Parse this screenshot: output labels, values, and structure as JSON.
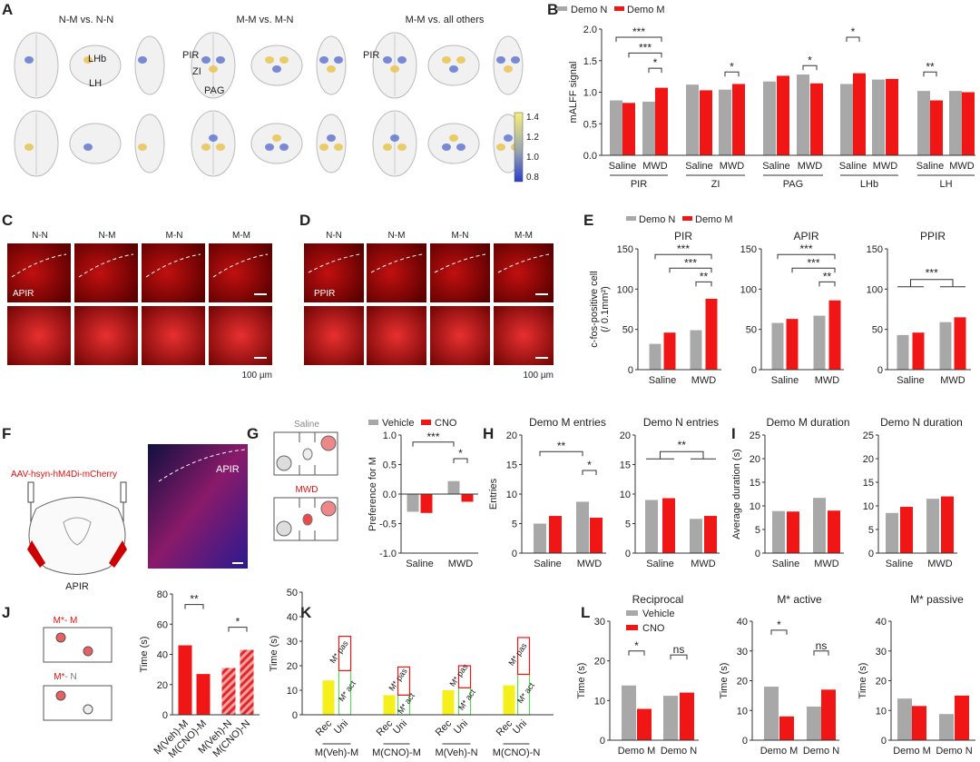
{
  "panel_letters": {
    "A": "A",
    "B": "B",
    "C": "C",
    "D": "D",
    "E": "E",
    "F": "F",
    "G": "G",
    "H": "H",
    "I": "I",
    "J": "J",
    "K": "K",
    "L": "L"
  },
  "colors": {
    "gray": "#a8a8a8",
    "red": "#f01616",
    "yellow": "#f5ef1c",
    "green": "#5cd65c"
  },
  "panelA": {
    "titles": [
      "N-M vs. N-N",
      "M-M vs. M-N",
      "M-M vs. all others"
    ],
    "region_labels": [
      "LHb",
      "LH",
      "PIR",
      "ZI",
      "PAG",
      "PIR"
    ],
    "colorbar_ticks": [
      "1.4",
      "1.2",
      "1.0",
      "0.8"
    ]
  },
  "panelC": {
    "columns": [
      "N-N",
      "N-M",
      "M-N",
      "M-M"
    ],
    "region": "APIR",
    "scale": "100 µm"
  },
  "panelD": {
    "columns": [
      "N-N",
      "N-M",
      "M-N",
      "M-M"
    ],
    "region": "PPIR",
    "scale": "100 µm"
  },
  "panelF": {
    "virus": "AAV-hsyn-hM4Di-mCherry",
    "slice_label": "APIR",
    "image_label": "APIR"
  },
  "panelG": {
    "saline": "Saline",
    "mwd": "MWD"
  },
  "panelJ": {
    "pair1_a": "M*",
    "pair1_b": "- M",
    "pair2_a": "M*",
    "pair2_b": "- N"
  },
  "legends": {
    "demo": [
      "Demo N",
      "Demo M"
    ],
    "drug": [
      "Vehicle",
      "CNO"
    ]
  },
  "charts": {
    "B": {
      "ylabel": "mALFF signal",
      "ylim": [
        0,
        2
      ],
      "yticks": [
        "0.0",
        "0.5",
        "1.0",
        "1.5",
        "2.0"
      ],
      "ytick_values": [
        0,
        0.5,
        1,
        1.5,
        2
      ],
      "bars": [
        {
          "v": 0.87,
          "s": "gray"
        },
        {
          "v": 0.83,
          "s": "red"
        },
        {
          "v": 0.85,
          "s": "gray"
        },
        {
          "v": 1.07,
          "s": "red"
        },
        {
          "v": 1.12,
          "s": "gray"
        },
        {
          "v": 1.03,
          "s": "red"
        },
        {
          "v": 1.04,
          "s": "gray"
        },
        {
          "v": 1.13,
          "s": "red"
        },
        {
          "v": 1.17,
          "s": "gray"
        },
        {
          "v": 1.26,
          "s": "red"
        },
        {
          "v": 1.28,
          "s": "gray"
        },
        {
          "v": 1.14,
          "s": "red"
        },
        {
          "v": 1.13,
          "s": "gray"
        },
        {
          "v": 1.3,
          "s": "red"
        },
        {
          "v": 1.2,
          "s": "gray"
        },
        {
          "v": 1.21,
          "s": "red"
        },
        {
          "v": 1.02,
          "s": "gray"
        },
        {
          "v": 0.87,
          "s": "red"
        },
        {
          "v": 1.02,
          "s": "gray"
        },
        {
          "v": 1.0,
          "s": "red"
        }
      ],
      "xlabels": [
        {
          "t": "Saline",
          "a": 0,
          "b": 1
        },
        {
          "t": "MWD",
          "a": 2,
          "b": 3
        },
        {
          "t": "Saline",
          "a": 4,
          "b": 5
        },
        {
          "t": "MWD",
          "a": 6,
          "b": 7
        },
        {
          "t": "Saline",
          "a": 8,
          "b": 9
        },
        {
          "t": "MWD",
          "a": 10,
          "b": 11
        },
        {
          "t": "Saline",
          "a": 12,
          "b": 13
        },
        {
          "t": "MWD",
          "a": 14,
          "b": 15
        },
        {
          "t": "Saline",
          "a": 16,
          "b": 17
        },
        {
          "t": "MWD",
          "a": 18,
          "b": 19
        },
        {
          "t": "PIR",
          "a": 0,
          "b": 3,
          "row": 1
        },
        {
          "t": "ZI",
          "a": 4,
          "b": 7,
          "row": 1
        },
        {
          "t": "PAG",
          "a": 8,
          "b": 11,
          "row": 1
        },
        {
          "t": "LHb",
          "a": 12,
          "b": 15,
          "row": 1
        },
        {
          "t": "LH",
          "a": 16,
          "b": 19,
          "row": 1
        }
      ],
      "sig": [
        {
          "a": 0,
          "b": 3,
          "y": 1.87,
          "t": "***"
        },
        {
          "a": 1,
          "b": 3,
          "y": 1.62,
          "t": "***"
        },
        {
          "a": 2,
          "b": 3,
          "y": 1.38,
          "t": "*"
        },
        {
          "a": 6,
          "b": 7,
          "y": 1.32,
          "t": "*"
        },
        {
          "a": 10,
          "b": 11,
          "y": 1.42,
          "t": "*"
        },
        {
          "a": 12,
          "b": 13,
          "y": 1.87,
          "t": "*"
        },
        {
          "a": 16,
          "b": 17,
          "y": 1.32,
          "t": "**"
        }
      ]
    },
    "E1": {
      "title": "PIR",
      "ylabel": "c-fos-positive cell",
      "ylabel2": "(/ 0.1mm²)",
      "ylim": [
        0,
        150
      ],
      "yticks": [
        "0",
        "50",
        "100",
        "150"
      ],
      "ytick_values": [
        0,
        50,
        100,
        150
      ],
      "bars": [
        {
          "v": 32,
          "s": "gray"
        },
        {
          "v": 46,
          "s": "red"
        },
        {
          "v": 49,
          "s": "gray"
        },
        {
          "v": 88,
          "s": "red"
        }
      ],
      "xlabels": [
        {
          "t": "Saline",
          "a": 0,
          "b": 1
        },
        {
          "t": "MWD",
          "a": 2,
          "b": 3
        }
      ],
      "sig": [
        {
          "a": 0,
          "b": 3,
          "y": 143,
          "t": "***"
        },
        {
          "a": 1,
          "b": 3,
          "y": 126,
          "t": "***"
        },
        {
          "a": 2,
          "b": 3,
          "y": 109,
          "t": "**"
        }
      ]
    },
    "E2": {
      "title": "APIR",
      "ylim": [
        0,
        150
      ],
      "yticks": [
        "0",
        "50",
        "100",
        "150"
      ],
      "ytick_values": [
        0,
        50,
        100,
        150
      ],
      "bars": [
        {
          "v": 58,
          "s": "gray"
        },
        {
          "v": 63,
          "s": "red"
        },
        {
          "v": 67,
          "s": "gray"
        },
        {
          "v": 86,
          "s": "red"
        }
      ],
      "xlabels": [
        {
          "t": "Saline",
          "a": 0,
          "b": 1
        },
        {
          "t": "MWD",
          "a": 2,
          "b": 3
        }
      ],
      "sig": [
        {
          "a": 0,
          "b": 3,
          "y": 143,
          "t": "***"
        },
        {
          "a": 1,
          "b": 3,
          "y": 126,
          "t": "***"
        },
        {
          "a": 2,
          "b": 3,
          "y": 109,
          "t": "**"
        }
      ]
    },
    "E3": {
      "title": "PPIR",
      "ylim": [
        0,
        150
      ],
      "yticks": [
        "0",
        "50",
        "100",
        "150"
      ],
      "ytick_values": [
        0,
        50,
        100,
        150
      ],
      "bars": [
        {
          "v": 43,
          "s": "gray"
        },
        {
          "v": 46,
          "s": "red"
        },
        {
          "v": 59,
          "s": "gray"
        },
        {
          "v": 65,
          "s": "red"
        }
      ],
      "xlabels": [
        {
          "t": "Saline",
          "a": 0,
          "b": 1
        },
        {
          "t": "MWD",
          "a": 2,
          "b": 3
        }
      ],
      "sig": [
        {
          "a": 0,
          "b": 3,
          "y": 112,
          "t": "***",
          "grouped": true
        }
      ]
    },
    "G": {
      "ylabel": "Preference for M",
      "ylim": [
        -1,
        1
      ],
      "yticks": [
        "-1.0",
        "-0.5",
        "0.0",
        "0.5",
        "1.0"
      ],
      "ytick_values": [
        -1,
        -0.5,
        0,
        0.5,
        1
      ],
      "bars": [
        {
          "v": -0.3,
          "s": "gray"
        },
        {
          "v": -0.32,
          "s": "red"
        },
        {
          "v": 0.22,
          "s": "gray"
        },
        {
          "v": -0.13,
          "s": "red"
        }
      ],
      "xlabels": [
        {
          "t": "Saline",
          "a": 0,
          "b": 1
        },
        {
          "t": "MWD",
          "a": 2,
          "b": 3
        }
      ],
      "sig": [
        {
          "a": 0,
          "b": 2,
          "y": 0.88,
          "t": "***"
        },
        {
          "a": 2,
          "b": 3,
          "y": 0.6,
          "t": "*"
        }
      ]
    },
    "H1": {
      "title": "Demo M entries",
      "ylabel": "Entries",
      "ylim": [
        0,
        20
      ],
      "yticks": [
        "0",
        "5",
        "10",
        "15",
        "20"
      ],
      "ytick_values": [
        0,
        5,
        10,
        15,
        20
      ],
      "bars": [
        {
          "v": 5.0,
          "s": "gray"
        },
        {
          "v": 6.3,
          "s": "red"
        },
        {
          "v": 8.7,
          "s": "gray"
        },
        {
          "v": 6.0,
          "s": "red"
        }
      ],
      "xlabels": [
        {
          "t": "Saline",
          "a": 0,
          "b": 1
        },
        {
          "t": "MWD",
          "a": 2,
          "b": 3
        }
      ],
      "sig": [
        {
          "a": 0,
          "b": 2,
          "y": 17.2,
          "t": "**"
        },
        {
          "a": 2,
          "b": 3,
          "y": 14,
          "t": "*"
        }
      ]
    },
    "H2": {
      "title": "Demo N entries",
      "ylim": [
        0,
        20
      ],
      "yticks": [
        "0",
        "5",
        "10",
        "15",
        "20"
      ],
      "ytick_values": [
        0,
        5,
        10,
        15,
        20
      ],
      "bars": [
        {
          "v": 9.0,
          "s": "gray"
        },
        {
          "v": 9.3,
          "s": "red"
        },
        {
          "v": 5.8,
          "s": "gray"
        },
        {
          "v": 6.3,
          "s": "red"
        }
      ],
      "xlabels": [
        {
          "t": "Saline",
          "a": 0,
          "b": 1
        },
        {
          "t": "MWD",
          "a": 2,
          "b": 3
        }
      ],
      "sig": [
        {
          "a": 0,
          "b": 3,
          "y": 17.2,
          "t": "**",
          "grouped": true
        }
      ]
    },
    "I1": {
      "title": "Demo M duration",
      "ylabel": "Average duration (s)",
      "ylim": [
        0,
        25
      ],
      "yticks": [
        "0",
        "5",
        "10",
        "15",
        "20",
        "25"
      ],
      "ytick_values": [
        0,
        5,
        10,
        15,
        20,
        25
      ],
      "bars": [
        {
          "v": 8.9,
          "s": "gray"
        },
        {
          "v": 8.8,
          "s": "red"
        },
        {
          "v": 11.7,
          "s": "gray"
        },
        {
          "v": 9.0,
          "s": "red"
        }
      ],
      "xlabels": [
        {
          "t": "Saline",
          "a": 0,
          "b": 1
        },
        {
          "t": "MWD",
          "a": 2,
          "b": 3
        }
      ],
      "sig": []
    },
    "I2": {
      "title": "Demo N duration",
      "ylim": [
        0,
        25
      ],
      "yticks": [
        "0",
        "5",
        "10",
        "15",
        "20",
        "25"
      ],
      "ytick_values": [
        0,
        5,
        10,
        15,
        20,
        25
      ],
      "bars": [
        {
          "v": 8.5,
          "s": "gray"
        },
        {
          "v": 9.8,
          "s": "red"
        },
        {
          "v": 11.5,
          "s": "gray"
        },
        {
          "v": 12.0,
          "s": "red"
        }
      ],
      "xlabels": [
        {
          "t": "Saline",
          "a": 0,
          "b": 1
        },
        {
          "t": "MWD",
          "a": 2,
          "b": 3
        }
      ],
      "sig": []
    },
    "J": {
      "ylabel": "Time (s)",
      "ylim": [
        0,
        80
      ],
      "yticks": [
        "0",
        "20",
        "40",
        "60",
        "80"
      ],
      "ytick_values": [
        0,
        20,
        40,
        60,
        80
      ],
      "bars": [
        {
          "v": 46,
          "s": "red"
        },
        {
          "v": 27,
          "s": "red"
        },
        {
          "v": 31,
          "s": "hatch"
        },
        {
          "v": 43,
          "s": "hatch"
        }
      ],
      "xlabels": [
        {
          "t": "M(Veh)-M",
          "a": 0,
          "b": 0,
          "rot": true
        },
        {
          "t": "M(CNO)-M",
          "a": 1,
          "b": 1,
          "rot": true
        },
        {
          "t": "M(Veh)-N",
          "a": 2,
          "b": 2,
          "rot": true
        },
        {
          "t": "M(CNO)-N",
          "a": 3,
          "b": 3,
          "rot": true
        }
      ],
      "sig": [
        {
          "a": 0,
          "b": 1,
          "y": 73,
          "t": "**"
        },
        {
          "a": 2,
          "b": 3,
          "y": 58,
          "t": "*"
        }
      ]
    },
    "K": {
      "ylabel": "Time (s)",
      "ylim": [
        0,
        50
      ],
      "yticks": [
        "0",
        "10",
        "20",
        "30",
        "40",
        "50"
      ],
      "ytick_values": [
        0,
        10,
        20,
        30,
        40,
        50
      ],
      "bars": [
        {
          "v": 14,
          "s": "yellow"
        },
        {
          "v": 18,
          "s": "green",
          "lab": "M* act"
        },
        {
          "v": 32,
          "base": 18,
          "s": "redo",
          "lab": "M* pas"
        },
        {
          "v": 8,
          "s": "yellow"
        },
        {
          "v": 8,
          "s": "green",
          "lab": "M* act"
        },
        {
          "v": 19.5,
          "base": 8,
          "s": "redo",
          "lab": "M* pas"
        },
        {
          "v": 10,
          "s": "yellow"
        },
        {
          "v": 11,
          "s": "green",
          "lab": "M* act"
        },
        {
          "v": 20,
          "base": 11,
          "s": "redo",
          "lab": "M* pas"
        },
        {
          "v": 12,
          "s": "yellow"
        },
        {
          "v": 16.5,
          "s": "green",
          "lab": "M* act"
        },
        {
          "v": 31.5,
          "base": 16.5,
          "s": "redo",
          "lab": "M* pas"
        }
      ],
      "xlabels": [
        {
          "t": "Rec",
          "a": 0,
          "b": 0,
          "rot": true
        },
        {
          "t": "Uni",
          "a": 1,
          "b": 1,
          "rot": true
        },
        {
          "t": "Rec",
          "a": 3,
          "b": 3,
          "rot": true
        },
        {
          "t": "Uni",
          "a": 4,
          "b": 4,
          "rot": true
        },
        {
          "t": "Rec",
          "a": 6,
          "b": 6,
          "rot": true
        },
        {
          "t": "Uni",
          "a": 7,
          "b": 7,
          "rot": true
        },
        {
          "t": "Rec",
          "a": 9,
          "b": 9,
          "rot": true
        },
        {
          "t": "Uni",
          "a": 10,
          "b": 10,
          "rot": true
        },
        {
          "t": "M(Veh)-M",
          "a": 0,
          "b": 1,
          "row": 2
        },
        {
          "t": "M(CNO)-M",
          "a": 3,
          "b": 4,
          "row": 2
        },
        {
          "t": "M(Veh)-N",
          "a": 6,
          "b": 7,
          "row": 2
        },
        {
          "t": "M(CNO)-N",
          "a": 9,
          "b": 10,
          "row": 2
        }
      ],
      "sig": []
    },
    "L1": {
      "title": "Reciprocal",
      "ylabel": "Time (s)",
      "ylim": [
        0,
        30
      ],
      "yticks": [
        "0",
        "10",
        "20",
        "30"
      ],
      "ytick_values": [
        0,
        10,
        20,
        30
      ],
      "bars": [
        {
          "v": 13.8,
          "s": "gray"
        },
        {
          "v": 7.9,
          "s": "red"
        },
        {
          "v": 11.2,
          "s": "gray"
        },
        {
          "v": 12.0,
          "s": "red"
        }
      ],
      "xlabels": [
        {
          "t": "Demo M",
          "a": 0,
          "b": 1
        },
        {
          "t": "Demo N",
          "a": 2,
          "b": 3
        }
      ],
      "sig": [
        {
          "a": 0,
          "b": 1,
          "y": 22.5,
          "t": "*"
        },
        {
          "a": 2,
          "b": 3,
          "y": 21.5,
          "t": "ns"
        }
      ]
    },
    "L2": {
      "title": "M* active",
      "ylabel": "Time (s)",
      "ylim": [
        0,
        40
      ],
      "yticks": [
        "0",
        "10",
        "20",
        "30",
        "40"
      ],
      "ytick_values": [
        0,
        10,
        20,
        30,
        40
      ],
      "bars": [
        {
          "v": 18,
          "s": "gray"
        },
        {
          "v": 8,
          "s": "red"
        },
        {
          "v": 11.3,
          "s": "gray"
        },
        {
          "v": 17,
          "s": "red"
        }
      ],
      "xlabels": [
        {
          "t": "Demo M",
          "a": 0,
          "b": 1
        },
        {
          "t": "Demo N",
          "a": 2,
          "b": 3
        }
      ],
      "sig": [
        {
          "a": 0,
          "b": 1,
          "y": 37,
          "t": "*"
        },
        {
          "a": 2,
          "b": 3,
          "y": 30,
          "t": "ns"
        }
      ]
    },
    "L3": {
      "title": "M* passive",
      "ylabel": "Time (s)",
      "ylim": [
        0,
        40
      ],
      "yticks": [
        "0",
        "10",
        "20",
        "30",
        "40"
      ],
      "ytick_values": [
        0,
        10,
        20,
        30,
        40
      ],
      "bars": [
        {
          "v": 14,
          "s": "gray"
        },
        {
          "v": 11.5,
          "s": "red"
        },
        {
          "v": 8.8,
          "s": "gray"
        },
        {
          "v": 15,
          "s": "red"
        }
      ],
      "xlabels": [
        {
          "t": "Demo M",
          "a": 0,
          "b": 1
        },
        {
          "t": "Demo N",
          "a": 2,
          "b": 3
        }
      ],
      "sig": []
    }
  }
}
